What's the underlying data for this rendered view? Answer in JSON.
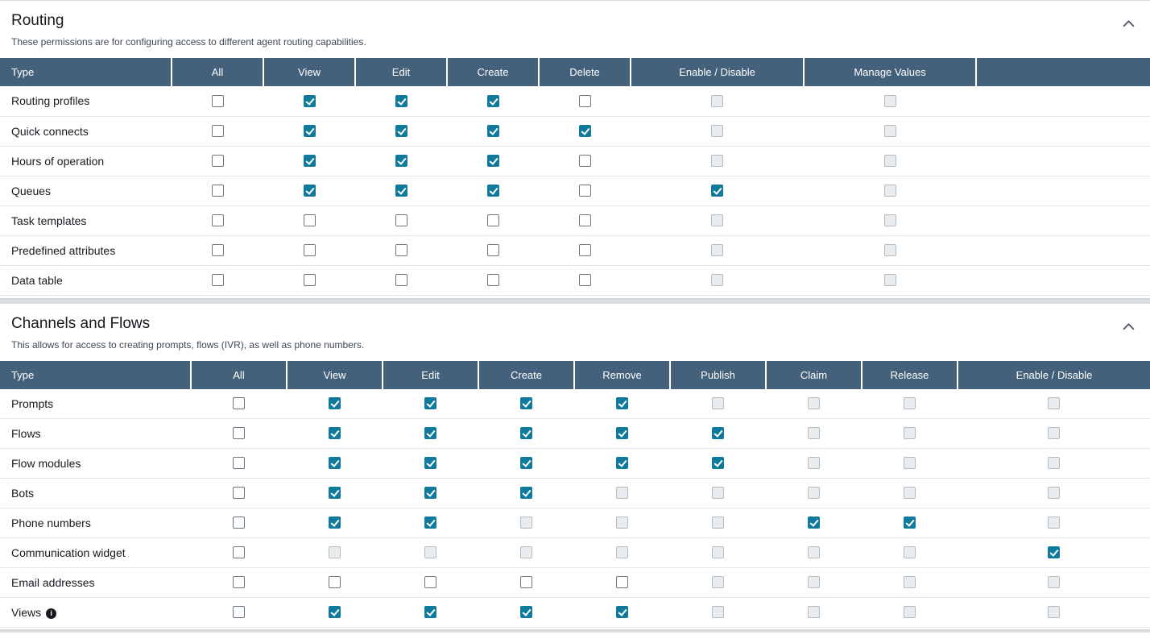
{
  "colors": {
    "header_bg": "#44617b",
    "accent": "#0f7a9c"
  },
  "icons": {
    "info": "i",
    "collapse": "chevron-up"
  },
  "sections": [
    {
      "title": "Routing",
      "description": "These permissions are for configuring access to different agent routing capabilities.",
      "columns": [
        "Type",
        "All",
        "View",
        "Edit",
        "Create",
        "Delete",
        "Enable / Disable",
        "Manage Values"
      ],
      "rows": [
        {
          "label": "Routing profiles",
          "states": [
            "unchecked",
            "checked",
            "checked",
            "checked",
            "unchecked",
            "disabled",
            "disabled"
          ]
        },
        {
          "label": "Quick connects",
          "states": [
            "unchecked",
            "checked",
            "checked",
            "checked",
            "checked",
            "disabled",
            "disabled"
          ]
        },
        {
          "label": "Hours of operation",
          "states": [
            "unchecked",
            "checked",
            "checked",
            "checked",
            "unchecked",
            "disabled",
            "disabled"
          ]
        },
        {
          "label": "Queues",
          "states": [
            "unchecked",
            "checked",
            "checked",
            "checked",
            "unchecked",
            "checked",
            "disabled"
          ]
        },
        {
          "label": "Task templates",
          "states": [
            "unchecked",
            "unchecked",
            "unchecked",
            "unchecked",
            "unchecked",
            "disabled",
            "disabled"
          ]
        },
        {
          "label": "Predefined attributes",
          "states": [
            "unchecked",
            "unchecked",
            "unchecked",
            "unchecked",
            "unchecked",
            "disabled",
            "disabled"
          ]
        },
        {
          "label": "Data table",
          "states": [
            "unchecked",
            "unchecked",
            "unchecked",
            "unchecked",
            "unchecked",
            "disabled",
            "disabled"
          ]
        }
      ]
    },
    {
      "title": "Channels and Flows",
      "description": "This allows for access to creating prompts, flows (IVR), as well as phone numbers.",
      "columns": [
        "Type",
        "All",
        "View",
        "Edit",
        "Create",
        "Remove",
        "Publish",
        "Claim",
        "Release",
        "Enable / Disable"
      ],
      "rows": [
        {
          "label": "Prompts",
          "states": [
            "unchecked",
            "checked",
            "checked",
            "checked",
            "checked",
            "disabled",
            "disabled",
            "disabled",
            "disabled"
          ]
        },
        {
          "label": "Flows",
          "states": [
            "unchecked",
            "checked",
            "checked",
            "checked",
            "checked",
            "checked",
            "disabled",
            "disabled",
            "disabled"
          ]
        },
        {
          "label": "Flow modules",
          "states": [
            "unchecked",
            "checked",
            "checked",
            "checked",
            "checked",
            "checked",
            "disabled",
            "disabled",
            "disabled"
          ]
        },
        {
          "label": "Bots",
          "states": [
            "unchecked",
            "checked",
            "checked",
            "checked",
            "disabled",
            "disabled",
            "disabled",
            "disabled",
            "disabled"
          ]
        },
        {
          "label": "Phone numbers",
          "states": [
            "unchecked",
            "checked",
            "checked",
            "disabled",
            "disabled",
            "disabled",
            "checked",
            "checked",
            "disabled"
          ]
        },
        {
          "label": "Communication widget",
          "states": [
            "unchecked",
            "disabled",
            "disabled",
            "disabled",
            "disabled",
            "disabled",
            "disabled",
            "disabled",
            "checked"
          ]
        },
        {
          "label": "Email addresses",
          "states": [
            "unchecked",
            "unchecked",
            "unchecked",
            "unchecked",
            "unchecked",
            "disabled",
            "disabled",
            "disabled",
            "disabled"
          ]
        },
        {
          "label": "Views",
          "info": true,
          "states": [
            "unchecked",
            "checked",
            "checked",
            "checked",
            "checked",
            "disabled",
            "disabled",
            "disabled",
            "disabled"
          ]
        }
      ]
    }
  ]
}
